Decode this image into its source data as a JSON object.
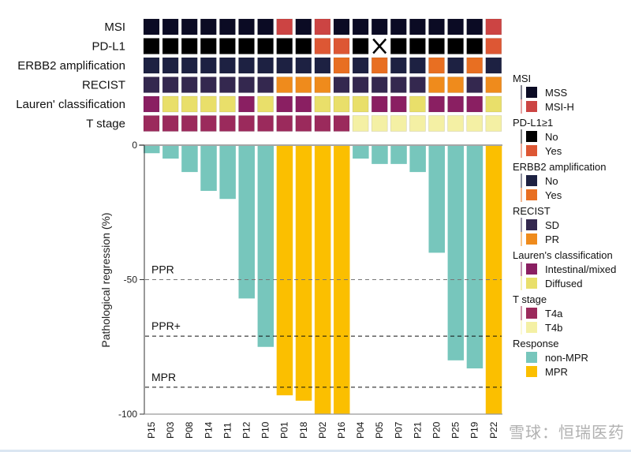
{
  "chart_data": {
    "type": "bar",
    "title": "",
    "xlabel": "",
    "ylabel": "Pathological regression (%)",
    "ylim": [
      -100,
      0
    ],
    "yticks": [
      0,
      -50,
      -100
    ],
    "ytick_labels": [
      "0",
      "-50",
      "-100"
    ],
    "grid": false,
    "categories": [
      "P15",
      "P03",
      "P08",
      "P14",
      "P11",
      "P12",
      "P10",
      "P01",
      "P18",
      "P02",
      "P16",
      "P04",
      "P05",
      "P07",
      "P21",
      "P20",
      "P25",
      "P19",
      "P22"
    ],
    "values": [
      -3,
      -5,
      -10,
      -17,
      -20,
      -57,
      -75,
      -93,
      -95,
      -100,
      -100,
      -5,
      -7,
      -7,
      -10,
      -40,
      -80,
      -83,
      -100
    ],
    "response": [
      "non-MPR",
      "non-MPR",
      "non-MPR",
      "non-MPR",
      "non-MPR",
      "non-MPR",
      "non-MPR",
      "MPR",
      "MPR",
      "MPR",
      "MPR",
      "non-MPR",
      "non-MPR",
      "non-MPR",
      "non-MPR",
      "non-MPR",
      "non-MPR",
      "non-MPR",
      "MPR"
    ],
    "thresholds": [
      {
        "label": "PPR",
        "value": -50,
        "style": "gray-dashed"
      },
      {
        "label": "PPR+",
        "value": -71,
        "style": "black-dashed"
      },
      {
        "label": "MPR",
        "value": -90,
        "style": "black-dashed"
      }
    ],
    "annotation_tracks": [
      {
        "label": "MSI",
        "legend_title": "MSI",
        "values": [
          "MSS",
          "MSS",
          "MSS",
          "MSS",
          "MSS",
          "MSS",
          "MSS",
          "MSI-H",
          "MSS",
          "MSI-H",
          "MSS",
          "MSS",
          "MSS",
          "MSS",
          "MSS",
          "MSS",
          "MSS",
          "MSS",
          "MSI-H"
        ]
      },
      {
        "label": "PD-L1",
        "legend_title": "PD-L1≥1",
        "values": [
          "No",
          "No",
          "No",
          "No",
          "No",
          "No",
          "No",
          "No",
          "No",
          "Yes",
          "Yes",
          "No",
          "NA",
          "No",
          "No",
          "No",
          "No",
          "No",
          "Yes"
        ]
      },
      {
        "label": "ERBB2 amplification",
        "legend_title": "ERBB2 amplification",
        "values": [
          "No",
          "No",
          "No",
          "No",
          "No",
          "No",
          "No",
          "No",
          "No",
          "No",
          "Yes",
          "No",
          "Yes",
          "No",
          "No",
          "Yes",
          "No",
          "Yes",
          "No"
        ]
      },
      {
        "label": "RECIST",
        "legend_title": "RECIST",
        "values": [
          "SD",
          "SD",
          "SD",
          "SD",
          "SD",
          "SD",
          "SD",
          "PR",
          "PR",
          "PR",
          "SD",
          "SD",
          "SD",
          "SD",
          "SD",
          "PR",
          "PR",
          "SD",
          "PR"
        ]
      },
      {
        "label": "Lauren' classification",
        "legend_title": "Lauren's classification",
        "values": [
          "Intestinal/mixed",
          "Diffused",
          "Diffused",
          "Diffused",
          "Diffused",
          "Intestinal/mixed",
          "Diffused",
          "Intestinal/mixed",
          "Intestinal/mixed",
          "Diffused",
          "Diffused",
          "Diffused",
          "Intestinal/mixed",
          "Intestinal/mixed",
          "Diffused",
          "Intestinal/mixed",
          "Intestinal/mixed",
          "Intestinal/mixed",
          "Diffused"
        ]
      },
      {
        "label": "T stage",
        "legend_title": "T stage",
        "values": [
          "T4a",
          "T4a",
          "T4a",
          "T4a",
          "T4a",
          "T4a",
          "T4a",
          "T4a",
          "T4a",
          "T4a",
          "T4a",
          "T4b",
          "T4b",
          "T4b",
          "T4b",
          "T4b",
          "T4b",
          "T4b",
          "T4b"
        ]
      }
    ],
    "legend": {
      "placement": "right",
      "groups": [
        {
          "title": "MSI",
          "items": [
            {
              "label": "MSS",
              "color": "#0b0b24"
            },
            {
              "label": "MSI-H",
              "color": "#cc4443"
            }
          ]
        },
        {
          "title": "PD-L1≥1",
          "items": [
            {
              "label": "No",
              "color": "#000000"
            },
            {
              "label": "Yes",
              "color": "#dd5734"
            }
          ]
        },
        {
          "title": "ERBB2 amplification",
          "items": [
            {
              "label": "No",
              "color": "#1d2142"
            },
            {
              "label": "Yes",
              "color": "#e86f22"
            }
          ]
        },
        {
          "title": "RECIST",
          "items": [
            {
              "label": "SD",
              "color": "#34284f"
            },
            {
              "label": "PR",
              "color": "#ef8b1c"
            }
          ]
        },
        {
          "title": "Lauren's classification",
          "items": [
            {
              "label": "Intestinal/mixed",
              "color": "#8a1f62"
            },
            {
              "label": "Diffused",
              "color": "#e9df6a"
            }
          ]
        },
        {
          "title": "T stage",
          "items": [
            {
              "label": "T4a",
              "color": "#9b2a5c"
            },
            {
              "label": "T4b",
              "color": "#f4f0a4"
            }
          ]
        },
        {
          "title": "Response",
          "items": [
            {
              "label": "non-MPR",
              "color": "#77c6bc"
            },
            {
              "label": "MPR",
              "color": "#fbbf00"
            }
          ]
        }
      ]
    }
  },
  "watermark": "雪球：恒瑞医药"
}
